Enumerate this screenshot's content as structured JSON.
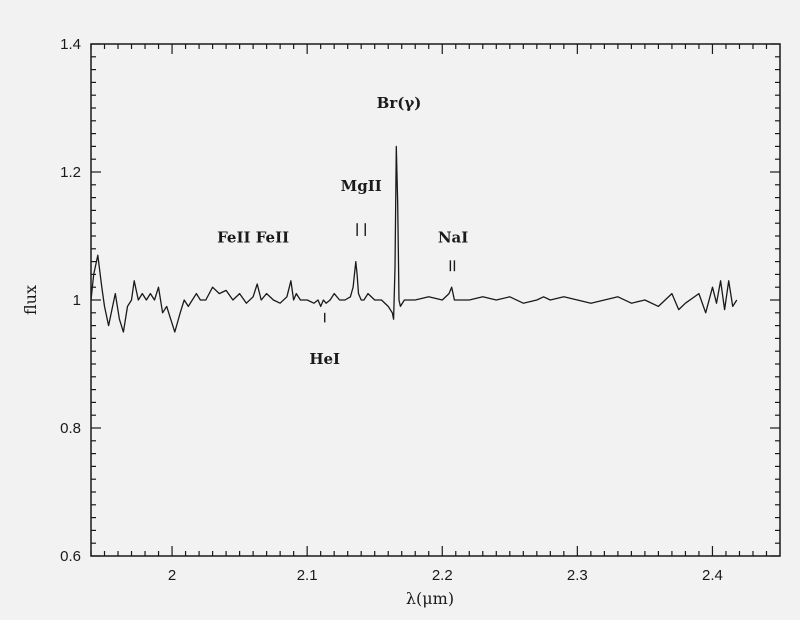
{
  "chart_data": {
    "type": "line",
    "title": "",
    "xlabel": "λ(μm)",
    "ylabel": "flux",
    "xlim": [
      1.94,
      2.45
    ],
    "ylim": [
      0.6,
      1.4
    ],
    "xticks": [
      2,
      2.1,
      2.2,
      2.3,
      2.4
    ],
    "xtick_labels": [
      "2",
      "2.1",
      "2.2",
      "2.3",
      "2.4"
    ],
    "yticks": [
      0.6,
      0.8,
      1,
      1.2,
      1.4
    ],
    "ytick_labels": [
      "0.6",
      "0.8",
      "1",
      "1.2",
      "1.4"
    ],
    "grid": false,
    "series": [
      {
        "x": [
          1.94,
          1.942,
          1.945,
          1.948,
          1.95,
          1.953,
          1.956,
          1.958,
          1.961,
          1.964,
          1.967,
          1.97,
          1.972,
          1.975,
          1.978,
          1.981,
          1.984,
          1.987,
          1.99,
          1.993,
          1.996,
          1.999,
          2.002,
          2.004,
          2.006,
          2.009,
          2.012,
          2.015,
          2.018,
          2.021,
          2.025,
          2.03,
          2.035,
          2.04,
          2.045,
          2.05,
          2.055,
          2.06,
          2.063,
          2.066,
          2.07,
          2.075,
          2.08,
          2.085,
          2.088,
          2.09,
          2.092,
          2.095,
          2.1,
          2.105,
          2.108,
          2.11,
          2.112,
          2.114,
          2.117,
          2.12,
          2.124,
          2.128,
          2.132,
          2.134,
          2.136,
          2.137,
          2.138,
          2.14,
          2.142,
          2.145,
          2.15,
          2.155,
          2.16,
          2.163,
          2.164,
          2.165,
          2.166,
          2.167,
          2.168,
          2.169,
          2.172,
          2.18,
          2.19,
          2.2,
          2.205,
          2.207,
          2.209,
          2.212,
          2.22,
          2.23,
          2.24,
          2.25,
          2.26,
          2.27,
          2.275,
          2.28,
          2.29,
          2.3,
          2.31,
          2.32,
          2.33,
          2.34,
          2.35,
          2.36,
          2.37,
          2.375,
          2.38,
          2.39,
          2.395,
          2.4,
          2.403,
          2.406,
          2.409,
          2.412,
          2.415,
          2.418
        ],
        "y": [
          1.0,
          1.04,
          1.07,
          1.02,
          0.99,
          0.96,
          0.99,
          1.01,
          0.97,
          0.95,
          0.99,
          1.0,
          1.03,
          1.0,
          1.01,
          1.0,
          1.01,
          1.0,
          1.02,
          0.98,
          0.99,
          0.97,
          0.95,
          0.965,
          0.98,
          1.0,
          0.99,
          1.0,
          1.01,
          1.0,
          1.0,
          1.02,
          1.01,
          1.015,
          1.0,
          1.01,
          0.995,
          1.005,
          1.025,
          1.0,
          1.01,
          1.0,
          0.995,
          1.005,
          1.03,
          1.0,
          1.01,
          1.0,
          1.0,
          0.995,
          1.0,
          0.99,
          1.0,
          0.995,
          1.0,
          1.01,
          1.0,
          1.0,
          1.005,
          1.02,
          1.06,
          1.04,
          1.01,
          1.0,
          1.0,
          1.01,
          1.0,
          1.0,
          0.99,
          0.98,
          0.97,
          1.05,
          1.24,
          1.15,
          1.0,
          0.99,
          1.0,
          1.0,
          1.005,
          1.0,
          1.01,
          1.02,
          1.0,
          1.0,
          1.0,
          1.005,
          1.0,
          1.005,
          0.995,
          1.0,
          1.005,
          1.0,
          1.005,
          1.0,
          0.995,
          1.0,
          1.005,
          0.995,
          1.0,
          0.99,
          1.01,
          0.985,
          0.995,
          1.01,
          0.98,
          1.02,
          0.995,
          1.03,
          0.985,
          1.03,
          0.99,
          1.0
        ]
      }
    ],
    "annotations": [
      {
        "text": "Br(γ)",
        "x": 2.168,
        "y": 1.3
      },
      {
        "text": "MgII",
        "x": 2.14,
        "y": 1.17
      },
      {
        "text": "FeII FeII",
        "x": 2.06,
        "y": 1.09
      },
      {
        "text": "NaI",
        "x": 2.208,
        "y": 1.09
      },
      {
        "text": "HeI",
        "x": 2.113,
        "y": 0.9
      }
    ],
    "line_markers": [
      {
        "x": 2.137,
        "y0": 1.1,
        "y1": 1.12
      },
      {
        "x": 2.143,
        "y0": 1.1,
        "y1": 1.12
      },
      {
        "x": 2.206,
        "y0": 1.045,
        "y1": 1.062
      },
      {
        "x": 2.209,
        "y0": 1.045,
        "y1": 1.062
      },
      {
        "x": 2.113,
        "y0": 0.965,
        "y1": 0.98
      }
    ]
  }
}
